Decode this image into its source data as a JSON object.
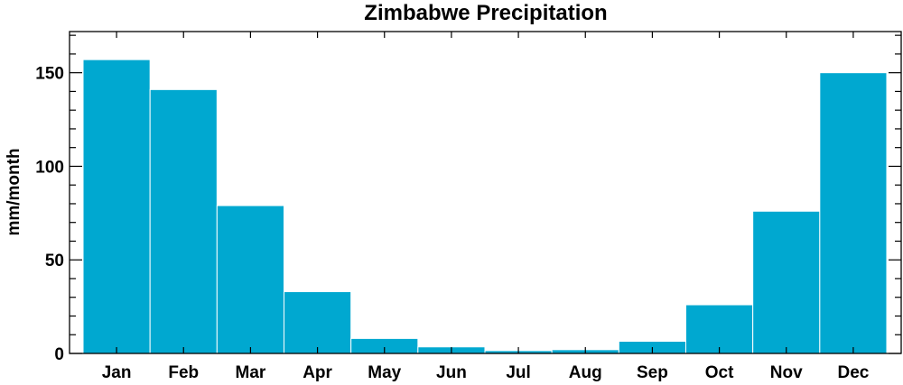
{
  "chart_data": {
    "type": "bar",
    "title": "Zimbabwe Precipitation",
    "xlabel": "",
    "ylabel": "mm/month",
    "categories": [
      "Jan",
      "Feb",
      "Mar",
      "Apr",
      "May",
      "Jun",
      "Jul",
      "Aug",
      "Sep",
      "Oct",
      "Nov",
      "Dec"
    ],
    "values": [
      157,
      141,
      79,
      33,
      8,
      3.5,
      1.5,
      2,
      6.5,
      26,
      76,
      150
    ],
    "ylim": [
      0,
      172
    ],
    "yticks": [
      0,
      50,
      100,
      150
    ],
    "ytick_labels": [
      "0",
      "50",
      "100",
      "150"
    ],
    "grid": false,
    "colors": {
      "bar": "#00a8d0",
      "bar_edge": "#ffffff",
      "axis": "#000000"
    }
  }
}
